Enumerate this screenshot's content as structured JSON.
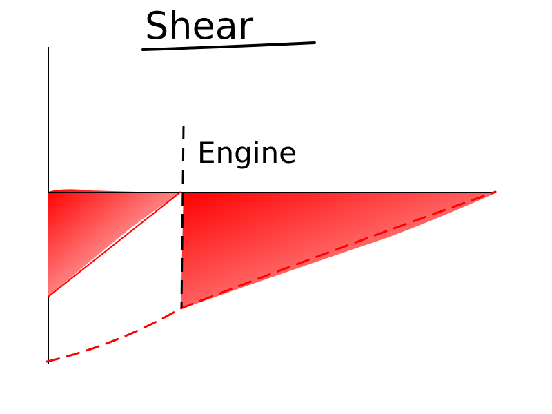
{
  "title": "Shear",
  "engine_label": "Engine",
  "colors": {
    "fill": "#ff0000",
    "fill_fade": "#ffffff",
    "dashed_line": "#ff0000",
    "axis": "#000000"
  }
}
